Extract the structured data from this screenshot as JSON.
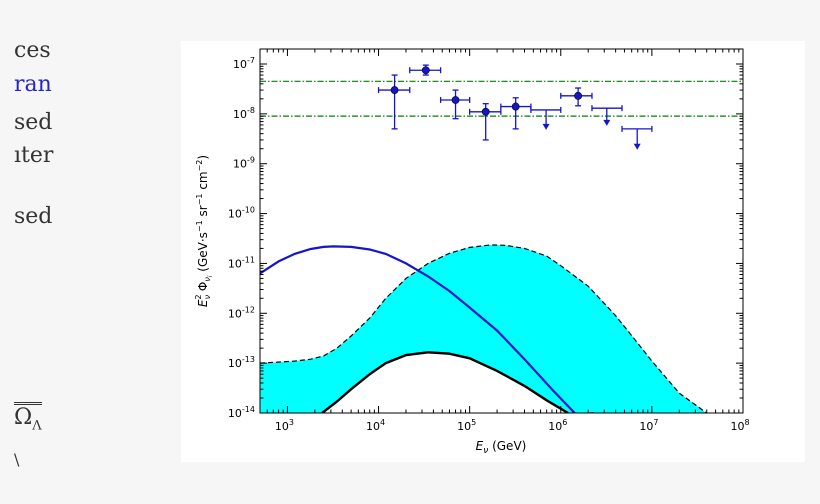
{
  "side_text": {
    "line1": "ces",
    "line2": "ran",
    "line3": "sed",
    "line4": "ıter",
    "line5": "sed",
    "omega_base": "Ω",
    "omega_sub": "Λ",
    "trailing": "\\"
  },
  "chart_data": {
    "type": "line",
    "xlabel": "E_ν (GeV)",
    "ylabel": "E_ν^2 Φ_ν_i (GeV·s⁻¹ sr⁻¹ cm⁻²)",
    "x_scale": "log",
    "y_scale": "log",
    "xlim": [
      500,
      100000000
    ],
    "ylim": [
      1e-14,
      2e-07
    ],
    "x_ticks": [
      {
        "v": 1000,
        "m": "10",
        "e": "3"
      },
      {
        "v": 10000,
        "m": "10",
        "e": "4"
      },
      {
        "v": 100000,
        "m": "10",
        "e": "5"
      },
      {
        "v": 1000000,
        "m": "10",
        "e": "6"
      },
      {
        "v": 10000000,
        "m": "10",
        "e": "7"
      },
      {
        "v": 100000000,
        "m": "10",
        "e": "8"
      }
    ],
    "y_ticks": [
      {
        "v": 1e-14,
        "m": "10",
        "e": "-14"
      },
      {
        "v": 1e-13,
        "m": "10",
        "e": "-13"
      },
      {
        "v": 1e-12,
        "m": "10",
        "e": "-12"
      },
      {
        "v": 1e-11,
        "m": "10",
        "e": "-11"
      },
      {
        "v": 1e-10,
        "m": "10",
        "e": "-10"
      },
      {
        "v": 1e-09,
        "m": "10",
        "e": "-9"
      },
      {
        "v": 1e-08,
        "m": "10",
        "e": "-8"
      },
      {
        "v": 1e-07,
        "m": "10",
        "e": "-7"
      }
    ],
    "colors": {
      "data": "#1515cc",
      "blue_curve": "#1515cc",
      "band": "#00ffff",
      "hline": "#008000",
      "black_curve": "#000000"
    },
    "horizontal_lines": [
      4.5e-08,
      9e-09
    ],
    "data_points": [
      {
        "x": 15000,
        "y": 3e-08,
        "xerr": [
          10000,
          22000
        ],
        "yerr": [
          5e-09,
          6e-08
        ]
      },
      {
        "x": 33000,
        "y": 7.5e-08,
        "xerr": [
          22000,
          48000
        ],
        "yerr": [
          6e-08,
          9.5e-08
        ]
      },
      {
        "x": 70000,
        "y": 1.9e-08,
        "xerr": [
          48000,
          100000
        ],
        "yerr": [
          8e-09,
          3e-08
        ]
      },
      {
        "x": 150000,
        "y": 1.1e-08,
        "xerr": [
          100000,
          220000
        ],
        "yerr": [
          3e-09,
          1.6e-08
        ]
      },
      {
        "x": 320000,
        "y": 1.4e-08,
        "xerr": [
          220000,
          470000
        ],
        "yerr": [
          5e-09,
          2.1e-08
        ]
      },
      {
        "x": 1550000,
        "y": 2.3e-08,
        "xerr": [
          1000000,
          2200000
        ],
        "yerr": [
          1.45e-08,
          3.3e-08
        ]
      }
    ],
    "upper_limits": [
      {
        "x": 690000,
        "y": 1.2e-08,
        "xerr": [
          470000,
          1000000
        ],
        "arrow_to": 5e-09
      },
      {
        "x": 3200000,
        "y": 1.3e-08,
        "xerr": [
          2200000,
          4700000
        ],
        "arrow_to": 6e-09
      },
      {
        "x": 6900000,
        "y": 5e-09,
        "xerr": [
          4700000,
          10000000
        ],
        "arrow_to": 2e-09
      }
    ],
    "blue_curve": {
      "x": [
        500,
        800,
        1200,
        1800,
        2500,
        3200,
        5000,
        8000,
        12000,
        20000,
        35000,
        60000,
        100000,
        200000,
        400000,
        800000,
        1500000,
        2300000
      ],
      "y": [
        6.3e-12,
        1.1e-11,
        1.55e-11,
        1.95e-11,
        2.15e-11,
        2.2e-11,
        2.15e-11,
        1.9e-11,
        1.55e-11,
        1e-11,
        5.5e-12,
        2.8e-12,
        1.3e-12,
        4.5e-13,
        1.2e-13,
        3e-14,
        9e-15,
        1e-14
      ]
    },
    "band_upper": {
      "x": [
        500,
        800,
        1200,
        1800,
        2500,
        3500,
        5000,
        8000,
        12000,
        20000,
        35000,
        60000,
        100000,
        170000,
        250000,
        400000,
        700000,
        1000000,
        2000000,
        4000000,
        7000000,
        10000000,
        20000000,
        40000000
      ],
      "y": [
        1e-13,
        1.05e-13,
        1.1e-13,
        1.2e-13,
        1.4e-13,
        2e-13,
        3.5e-13,
        8e-13,
        2e-12,
        5e-12,
        1e-11,
        1.6e-11,
        2.1e-11,
        2.35e-11,
        2.3e-11,
        2e-11,
        1.4e-11,
        9e-12,
        3.5e-12,
        9e-13,
        2.5e-13,
        1.1e-13,
        2.5e-14,
        1e-14
      ]
    },
    "band_lower": {
      "x": [
        2400,
        3500,
        5000,
        8000,
        12000,
        20000,
        35000,
        60000,
        100000,
        200000,
        400000,
        700000,
        1200000
      ],
      "y": [
        1e-14,
        1.7e-14,
        3e-14,
        6e-14,
        1e-13,
        1.45e-13,
        1.65e-13,
        1.55e-13,
        1.25e-13,
        7e-14,
        3.5e-14,
        1.8e-14,
        1e-14
      ]
    }
  }
}
